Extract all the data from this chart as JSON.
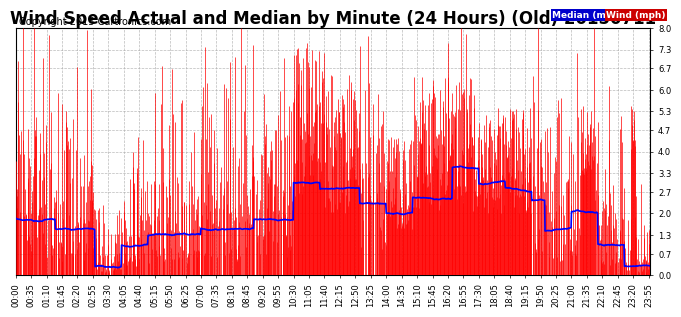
{
  "title": "Wind Speed Actual and Median by Minute (24 Hours) (Old) 20150711",
  "copyright": "Copyright 2015 Cartronics.com",
  "legend_median_label": "Median (mph)",
  "legend_wind_label": "Wind (mph)",
  "median_color": "#0000FF",
  "wind_color": "#FF0000",
  "legend_median_bg": "#0000CC",
  "legend_wind_bg": "#CC0000",
  "background_color": "#FFFFFF",
  "grid_color": "#AAAAAA",
  "ylim": [
    0.0,
    8.0
  ],
  "yticks": [
    0.0,
    0.7,
    1.3,
    2.0,
    2.7,
    3.3,
    4.0,
    4.7,
    5.3,
    6.0,
    6.7,
    7.3,
    8.0
  ],
  "title_fontsize": 12,
  "copyright_fontsize": 7,
  "tick_fontsize": 6,
  "total_minutes": 1440
}
